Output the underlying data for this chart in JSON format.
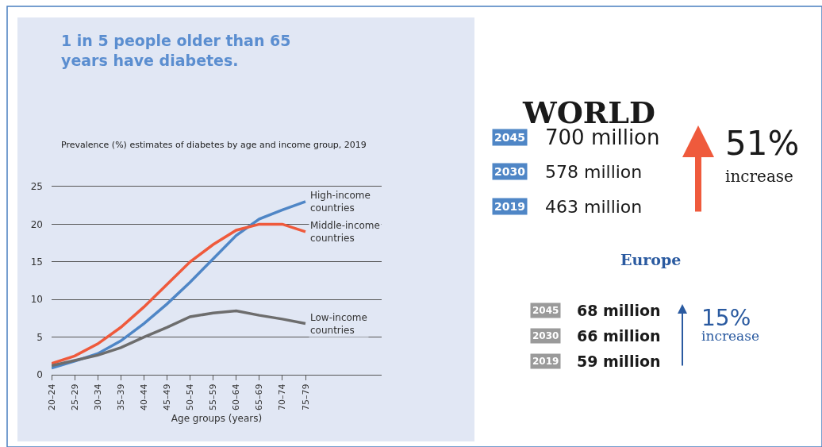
{
  "chart_data": [
    {
      "type": "line",
      "title": "1 in 5 people older than 65 years have diabetes.",
      "subtitle": "Prevalence (%) estimates of diabetes by age and income group, 2019",
      "xlabel": "Age groups (years)",
      "categories": [
        "20–24",
        "25–29",
        "30–34",
        "35–39",
        "40–44",
        "45–49",
        "50–54",
        "55–59",
        "60–64",
        "65–69",
        "70–74",
        "75–79"
      ],
      "series": [
        {
          "name": "High-income countries",
          "color": "#4f86c6",
          "values": [
            0.9,
            1.8,
            2.8,
            4.5,
            6.8,
            9.4,
            12.3,
            15.4,
            18.5,
            20.7,
            21.9,
            23.0
          ]
        },
        {
          "name": "Middle-income countries",
          "color": "#ef5a3c",
          "values": [
            1.5,
            2.5,
            4.1,
            6.3,
            9.0,
            12.0,
            15.0,
            17.3,
            19.2,
            20.0,
            20.0,
            19.0
          ]
        },
        {
          "name": "Low-income countries",
          "color": "#6d6d6d",
          "values": [
            1.2,
            1.9,
            2.6,
            3.6,
            5.0,
            6.3,
            7.7,
            8.2,
            8.5,
            7.9,
            7.4,
            6.8
          ]
        }
      ],
      "ylim": [
        0,
        25
      ],
      "yticks": [
        0,
        5,
        10,
        15,
        20,
        25
      ],
      "grid": "y",
      "marker": "none",
      "line_style": "solid"
    },
    {
      "type": "other",
      "title": "WORLD",
      "annotations": [
        "2045",
        "700 million",
        "2030",
        "578 million",
        "2019",
        "463 million",
        "51%",
        "increase",
        "Europe",
        "2045",
        "68 million",
        "2030",
        "66 million",
        "2019",
        "59 million",
        "15%",
        "increase"
      ]
    }
  ]
}
